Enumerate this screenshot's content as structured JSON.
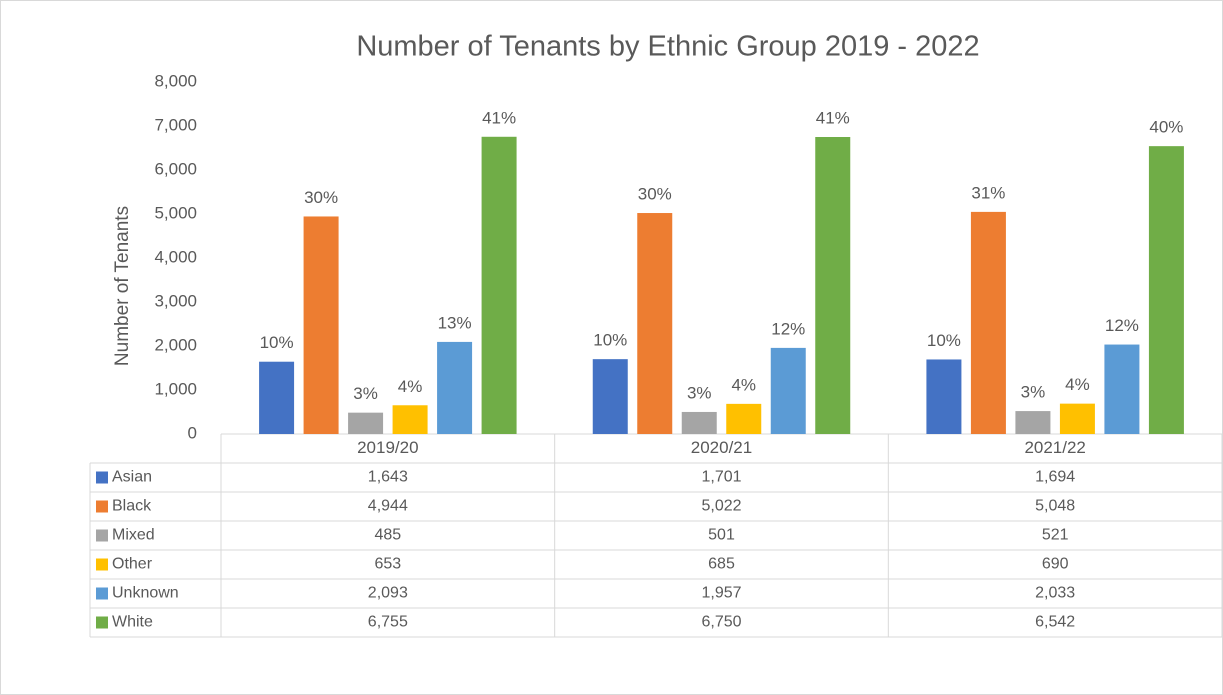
{
  "chart_data": {
    "type": "bar",
    "title": "Number of Tenants by Ethnic Group 2019 - 2022",
    "y_label": "Number of Tenants",
    "categories": [
      "2019/20",
      "2020/21",
      "2021/22"
    ],
    "series": [
      {
        "name": "Asian",
        "color": "#4472c4",
        "values": [
          1643,
          1701,
          1694
        ],
        "value_labels": [
          "1,643",
          "1,701",
          "1,694"
        ],
        "share_labels": [
          "10%",
          "10%",
          "10%"
        ]
      },
      {
        "name": "Black",
        "color": "#ed7d31",
        "values": [
          4944,
          5022,
          5048
        ],
        "value_labels": [
          "4,944",
          "5,022",
          "5,048"
        ],
        "share_labels": [
          "30%",
          "30%",
          "31%"
        ]
      },
      {
        "name": "Mixed",
        "color": "#a5a5a5",
        "values": [
          485,
          501,
          521
        ],
        "value_labels": [
          "485",
          "501",
          "521"
        ],
        "share_labels": [
          "3%",
          "3%",
          "3%"
        ]
      },
      {
        "name": "Other",
        "color": "#ffc000",
        "values": [
          653,
          685,
          690
        ],
        "value_labels": [
          "653",
          "685",
          "690"
        ],
        "share_labels": [
          "4%",
          "4%",
          "4%"
        ]
      },
      {
        "name": "Unknown",
        "color": "#5b9bd5",
        "values": [
          2093,
          1957,
          2033
        ],
        "value_labels": [
          "2,093",
          "1,957",
          "2,033"
        ],
        "share_labels": [
          "13%",
          "12%",
          "12%"
        ]
      },
      {
        "name": "White",
        "color": "#70ad47",
        "values": [
          6755,
          6750,
          6542
        ],
        "value_labels": [
          "6,755",
          "6,750",
          "6,542"
        ],
        "share_labels": [
          "41%",
          "41%",
          "40%"
        ]
      }
    ],
    "ylim": [
      0,
      8000
    ],
    "yticks": [
      0,
      {
        "value": 1000,
        "label": "1,000"
      },
      {
        "value": 2000,
        "label": "2,000"
      },
      {
        "value": 3000,
        "label": "3,000"
      },
      {
        "value": 4000,
        "label": "4,000"
      },
      {
        "value": 5000,
        "label": "5,000"
      },
      {
        "value": 6000,
        "label": "6,000"
      },
      {
        "value": 7000,
        "label": "7,000"
      },
      {
        "value": 8000,
        "label": "8,000"
      }
    ],
    "grid": false
  }
}
